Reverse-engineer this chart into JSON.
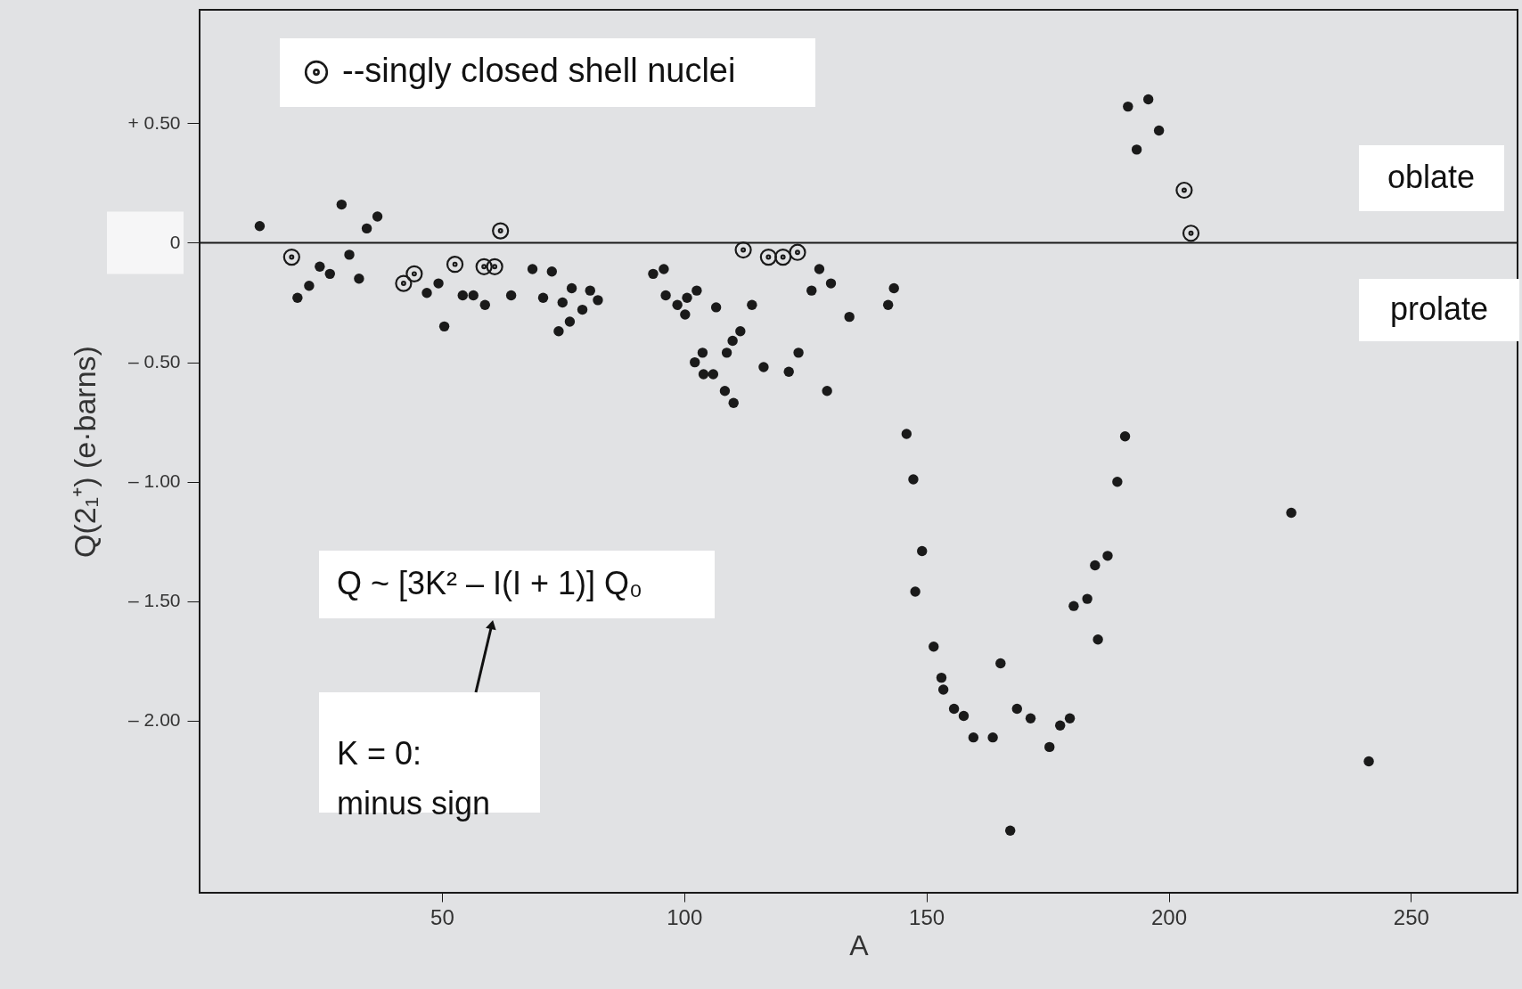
{
  "chart_data": {
    "type": "scatter",
    "xlabel": "A",
    "ylabel": "Q(2₁⁺)  (e·barns)",
    "xlim": [
      0,
      272
    ],
    "xticks": [
      50,
      100,
      150,
      200,
      250
    ],
    "ylim": [
      -2.72,
      0.975
    ],
    "yticks": [
      {
        "value": 0.5,
        "label": "+ 0.50"
      },
      {
        "value": 0,
        "label": "0"
      },
      {
        "value": -0.5,
        "label": "– 0.50"
      },
      {
        "value": -1.0,
        "label": "– 1.00"
      },
      {
        "value": -1.5,
        "label": "– 1.50"
      },
      {
        "value": -2.0,
        "label": "– 2.00"
      }
    ],
    "grid": false,
    "marker": "circle",
    "legend": "top left",
    "ref_lines": [
      {
        "axis": "y",
        "value": 0,
        "color": "#1a1a1a"
      }
    ],
    "annotations": [
      "oblate",
      "prolate",
      "Q ~ [3K² – I(I + 1)] Q₀",
      "K = 0:\nminus sign"
    ],
    "series": [
      {
        "color": "#1a1a1a",
        "x": [
          12.4,
          20.2,
          22.6,
          24.8,
          26.9,
          29.3,
          30.9,
          32.9,
          34.5,
          36.7,
          46.9,
          49.3,
          50.5,
          54.3,
          56.5,
          58.9,
          64.3,
          68.7,
          70.9,
          72.7,
          74.1,
          74.9,
          76.4,
          76.8,
          79.0,
          80.6,
          82.2,
          93.6,
          95.8,
          96.2,
          98.6,
          100.2,
          100.6,
          102.6,
          102.2,
          103.8,
          104.0,
          106.0,
          106.6,
          108.4,
          108.8,
          110.0,
          110.2,
          111.6,
          114.0,
          116.4,
          121.6,
          123.6,
          126.3,
          127.9,
          129.5,
          130.3,
          134.1,
          142.1,
          143.3,
          145.9,
          147.3,
          147.7,
          149.1,
          151.5,
          153.1,
          153.5,
          155.7,
          157.7,
          159.7,
          163.7,
          165.3,
          167.3,
          168.7,
          171.5,
          175.4,
          177.6,
          179.6,
          180.4,
          183.2,
          184.8,
          185.4,
          187.4,
          189.4,
          191.0,
          191.6,
          193.4,
          195.8,
          198.0,
          225.3,
          241.3
        ],
        "values": [
          0.07,
          -0.23,
          -0.18,
          -0.1,
          -0.13,
          0.16,
          -0.05,
          -0.15,
          0.06,
          0.11,
          -0.21,
          -0.17,
          -0.35,
          -0.22,
          -0.22,
          -0.26,
          -0.22,
          -0.11,
          -0.23,
          -0.12,
          -0.37,
          -0.25,
          -0.33,
          -0.19,
          -0.28,
          -0.2,
          -0.24,
          -0.13,
          -0.11,
          -0.22,
          -0.26,
          -0.3,
          -0.23,
          -0.2,
          -0.5,
          -0.46,
          -0.55,
          -0.55,
          -0.27,
          -0.62,
          -0.46,
          -0.41,
          -0.67,
          -0.37,
          -0.26,
          -0.52,
          -0.54,
          -0.46,
          -0.2,
          -0.11,
          -0.62,
          -0.17,
          -0.31,
          -0.26,
          -0.19,
          -0.8,
          -0.99,
          -1.46,
          -1.29,
          -1.69,
          -1.82,
          -1.87,
          -1.95,
          -1.98,
          -2.07,
          -2.07,
          -1.76,
          -2.46,
          -1.95,
          -1.99,
          -2.11,
          -2.02,
          -1.99,
          -1.52,
          -1.49,
          -1.35,
          -1.66,
          -1.31,
          -1.0,
          -0.81,
          0.57,
          0.39,
          0.6,
          0.47,
          -1.13,
          -2.17
        ]
      },
      {
        "name": "--singly closed shell nuclei",
        "color": "#1a1a1a",
        "x": [
          19.0,
          42.1,
          44.3,
          52.7,
          58.7,
          60.9,
          62.1,
          112.2,
          117.4,
          120.4,
          123.4,
          203.2,
          204.6
        ],
        "values": [
          -0.06,
          -0.17,
          -0.13,
          -0.09,
          -0.1,
          -0.1,
          0.05,
          -0.03,
          -0.06,
          -0.06,
          -0.04,
          0.22,
          0.04
        ]
      }
    ]
  }
}
